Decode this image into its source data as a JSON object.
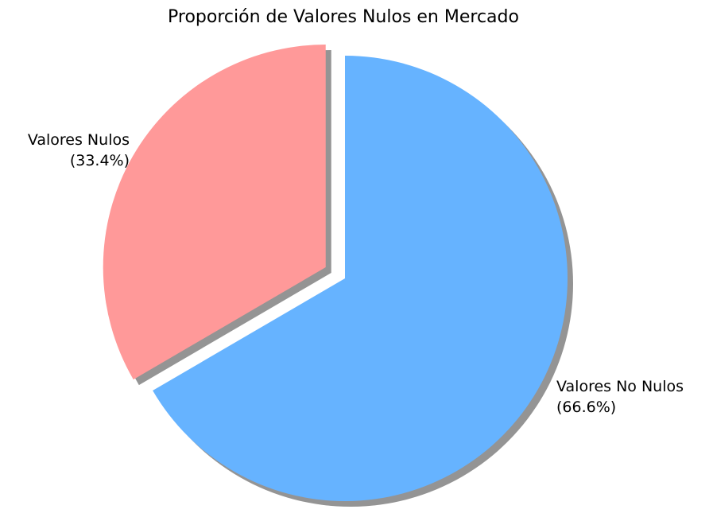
{
  "chart_data": {
    "type": "pie",
    "title": "Proporción de Valores Nulos en Mercado",
    "slices": [
      {
        "label": "Valores Nulos",
        "value": 33.4,
        "pct_label": "(33.4%)",
        "color": "#ff9999",
        "exploded": true
      },
      {
        "label": "Valores No Nulos",
        "value": 66.6,
        "pct_label": "(66.6%)",
        "color": "#66b3ff",
        "exploded": false
      }
    ],
    "start_angle_deg": 90,
    "direction": "counterclockwise",
    "shadow": true
  }
}
